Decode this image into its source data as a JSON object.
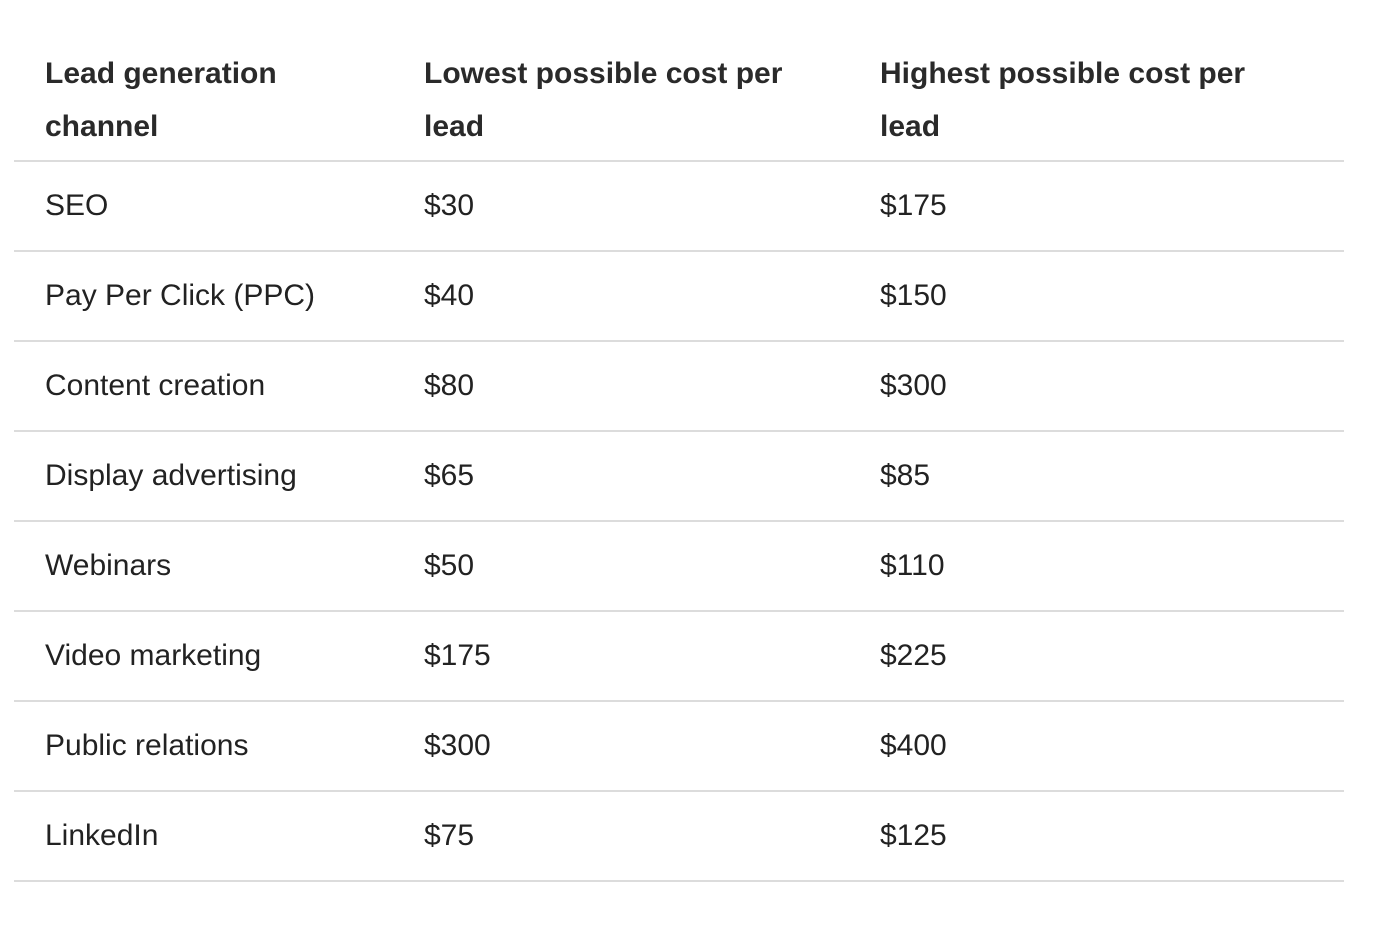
{
  "table": {
    "headers": [
      "Lead generation channel",
      "Lowest possible cost per lead",
      "Highest possible cost per lead"
    ],
    "rows": [
      {
        "channel": "SEO",
        "lowest": "$30",
        "highest": "$175"
      },
      {
        "channel": "Pay Per Click (PPC)",
        "lowest": "$40",
        "highest": "$150"
      },
      {
        "channel": "Content creation",
        "lowest": "$80",
        "highest": "$300"
      },
      {
        "channel": "Display advertising",
        "lowest": "$65",
        "highest": "$85"
      },
      {
        "channel": "Webinars",
        "lowest": "$50",
        "highest": "$110"
      },
      {
        "channel": "Video marketing",
        "lowest": "$175",
        "highest": "$225"
      },
      {
        "channel": "Public relations",
        "lowest": "$300",
        "highest": "$400"
      },
      {
        "channel": "LinkedIn",
        "lowest": "$75",
        "highest": "$125"
      }
    ]
  }
}
